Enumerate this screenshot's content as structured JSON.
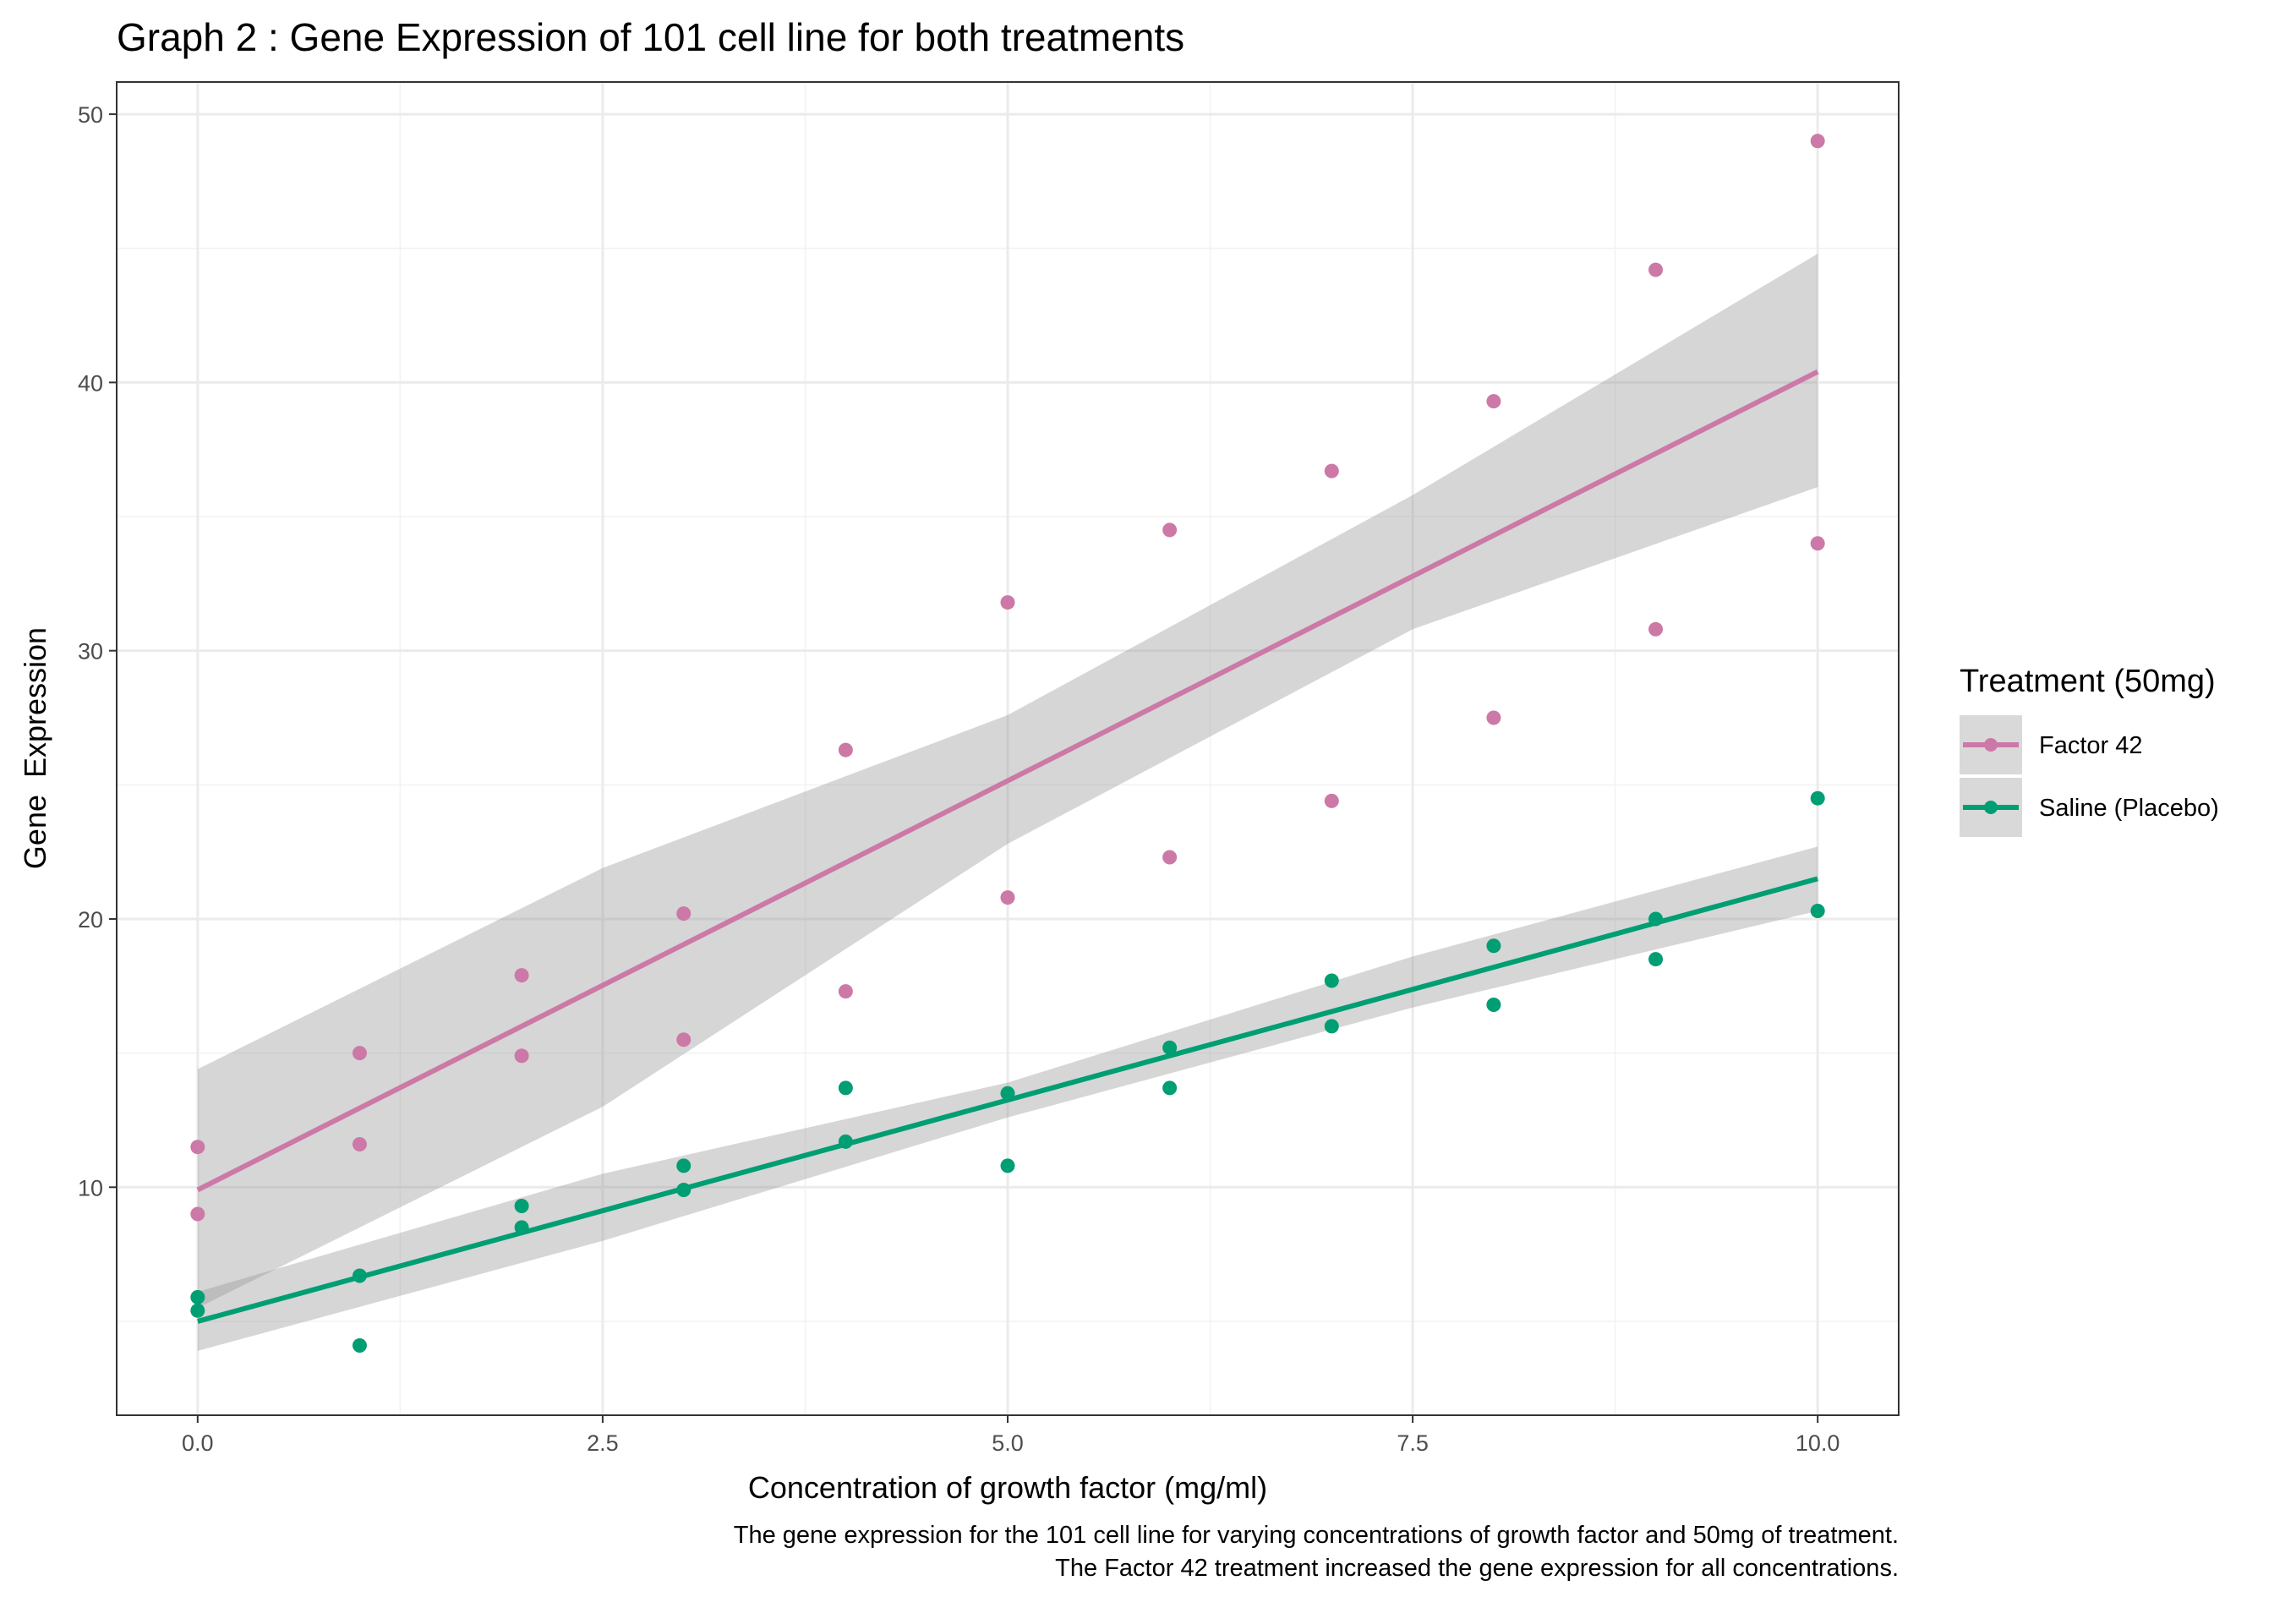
{
  "chart_data": {
    "type": "scatter",
    "title": "Graph 2 : Gene Expression of 101 cell line for both treatments",
    "xlabel": "Concentration of growth factor (mg/ml)",
    "ylabel": "Gene  Expression",
    "xlim": [
      -0.5,
      10.5
    ],
    "ylim": [
      1.5,
      51.2
    ],
    "x_ticks": [
      0,
      2.5,
      5,
      7.5,
      10
    ],
    "x_tick_labels": [
      "0.0",
      "2.5",
      "5.0",
      "7.5",
      "10.0"
    ],
    "y_ticks": [
      10,
      20,
      30,
      40,
      50
    ],
    "y_tick_labels": [
      "10",
      "20",
      "30",
      "40",
      "50"
    ],
    "grid": true,
    "legend": {
      "title": "Treatment (50mg)",
      "position": "right"
    },
    "caption": [
      "The gene expression for the 101 cell line for varying concentrations of growth factor and 50mg of treatment.",
      "The Factor 42 treatment increased the gene expression for all concentrations."
    ],
    "series": [
      {
        "name": "Factor 42",
        "color": "#CC79A7",
        "points": [
          [
            0,
            11.5
          ],
          [
            0,
            9.0
          ],
          [
            1,
            15.0
          ],
          [
            1,
            11.6
          ],
          [
            2,
            17.9
          ],
          [
            2,
            14.9
          ],
          [
            3,
            20.2
          ],
          [
            3,
            15.5
          ],
          [
            4,
            26.3
          ],
          [
            4,
            17.3
          ],
          [
            5,
            31.8
          ],
          [
            5,
            20.8
          ],
          [
            6,
            34.5
          ],
          [
            6,
            22.3
          ],
          [
            7,
            36.7
          ],
          [
            7,
            24.4
          ],
          [
            8,
            39.3
          ],
          [
            8,
            27.5
          ],
          [
            9,
            44.2
          ],
          [
            9,
            30.8
          ],
          [
            10,
            49.0
          ],
          [
            10,
            34.0
          ]
        ],
        "fit": {
          "x": [
            0,
            10
          ],
          "y": [
            9.9,
            40.4
          ]
        },
        "ci": {
          "x": [
            0,
            2.5,
            5,
            7.5,
            10
          ],
          "lower": [
            5.5,
            13.0,
            22.8,
            30.8,
            36.1
          ],
          "upper": [
            14.4,
            21.9,
            27.6,
            35.8,
            44.8
          ]
        }
      },
      {
        "name": "Saline (Placebo)",
        "color": "#009E73",
        "points": [
          [
            0,
            5.9
          ],
          [
            0,
            5.4
          ],
          [
            1,
            6.7
          ],
          [
            1,
            4.1
          ],
          [
            2,
            9.3
          ],
          [
            2,
            8.5
          ],
          [
            3,
            10.8
          ],
          [
            3,
            9.9
          ],
          [
            4,
            13.7
          ],
          [
            4,
            11.7
          ],
          [
            5,
            13.5
          ],
          [
            5,
            10.8
          ],
          [
            6,
            15.2
          ],
          [
            6,
            13.7
          ],
          [
            7,
            17.7
          ],
          [
            7,
            16.0
          ],
          [
            8,
            19.0
          ],
          [
            8,
            16.8
          ],
          [
            9,
            20.0
          ],
          [
            9,
            18.5
          ],
          [
            10,
            24.5
          ],
          [
            10,
            20.3
          ]
        ],
        "fit": {
          "x": [
            0,
            10
          ],
          "y": [
            5.0,
            21.5
          ]
        },
        "ci": {
          "x": [
            0,
            2.5,
            5,
            7.5,
            10
          ],
          "lower": [
            3.9,
            8.0,
            12.6,
            16.7,
            20.3
          ],
          "upper": [
            6.1,
            10.5,
            13.9,
            18.6,
            22.7
          ]
        }
      }
    ]
  }
}
